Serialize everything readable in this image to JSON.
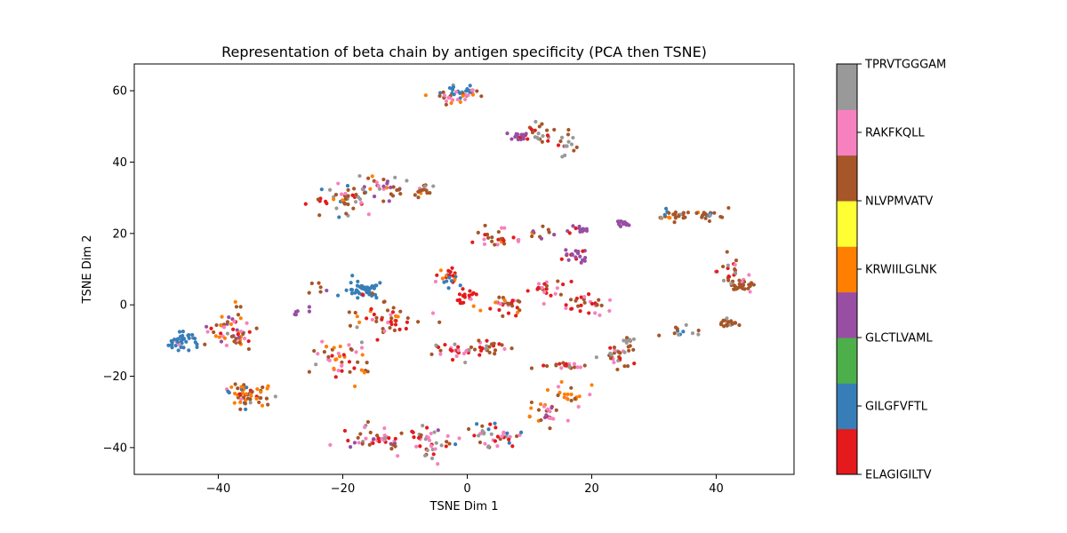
{
  "chart_data": {
    "type": "scatter",
    "title": "Representation of beta chain by antigen specificity (PCA then TSNE)",
    "xlabel": "TSNE Dim 1",
    "ylabel": "TSNE Dim 2",
    "xlim": [
      -53.5,
      52.5
    ],
    "ylim": [
      -47.5,
      67.5
    ],
    "xticks": [
      -40,
      -20,
      0,
      20,
      40
    ],
    "yticks": [
      -40,
      -20,
      0,
      20,
      40,
      60
    ],
    "grid": false,
    "legend": "colorbar-right",
    "colorbar": {
      "categories": [
        "ELAGIGILTV",
        "GILGFVFTL",
        "GLCTLVAML",
        "KRWIILGLNK",
        "NLVPMVATV",
        "RAKFKQLL",
        "TPRVTGGGAM"
      ],
      "colors": {
        "ELAGIGILTV": "#e41a1c",
        "GILGFVFTL": "#377eb8",
        "GLCTLVAML": "#4daf4a",
        "KRWIILGLNK": "#ff7f00",
        "NLVPMVATV": "#ffff33",
        "RAKFKQLL": "#f781bf",
        "TPRVTGGGAM": "#999999"
      },
      "color_order_bottom_to_top": [
        "#e41a1c",
        "#377eb8",
        "#4daf4a",
        "#984ea3",
        "#ff7f00",
        "#ffff33",
        "#a65628",
        "#f781bf",
        "#999999"
      ]
    },
    "clusters": [
      {
        "center": [
          -45.5,
          -10
        ],
        "spread": [
          2.0,
          2.5
        ],
        "n": 40,
        "mix": {
          "#377eb8": 0.9,
          "#a65628": 0.05,
          "#f781bf": 0.05
        }
      },
      {
        "center": [
          -38,
          -7
        ],
        "spread": [
          3.0,
          4.5
        ],
        "n": 55,
        "mix": {
          "#ff7f00": 0.35,
          "#a65628": 0.3,
          "#984ea3": 0.1,
          "#f781bf": 0.1,
          "#e41a1c": 0.1,
          "#999999": 0.05
        }
      },
      {
        "center": [
          -35,
          -25
        ],
        "spread": [
          3.5,
          3.5
        ],
        "n": 55,
        "mix": {
          "#ff7f00": 0.4,
          "#a65628": 0.2,
          "#377eb8": 0.15,
          "#e41a1c": 0.1,
          "#999999": 0.1,
          "#f781bf": 0.05
        }
      },
      {
        "center": [
          -20,
          30
        ],
        "spread": [
          4.0,
          3.5
        ],
        "n": 45,
        "mix": {
          "#a65628": 0.35,
          "#e41a1c": 0.25,
          "#ff7f00": 0.1,
          "#f781bf": 0.1,
          "#377eb8": 0.1,
          "#999999": 0.1
        }
      },
      {
        "center": [
          -13,
          33
        ],
        "spread": [
          3.5,
          3.0
        ],
        "n": 35,
        "mix": {
          "#a65628": 0.35,
          "#984ea3": 0.25,
          "#999999": 0.15,
          "#ff7f00": 0.1,
          "#f781bf": 0.15
        }
      },
      {
        "center": [
          -7,
          32
        ],
        "spread": [
          1.5,
          1.0
        ],
        "n": 12,
        "mix": {
          "#a65628": 0.8,
          "#999999": 0.2
        }
      },
      {
        "center": [
          0,
          60
        ],
        "spread": [
          2.5,
          1.5
        ],
        "n": 30,
        "mix": {
          "#377eb8": 0.5,
          "#a65628": 0.2,
          "#f781bf": 0.15,
          "#999999": 0.15
        }
      },
      {
        "center": [
          -2,
          58
        ],
        "spread": [
          2.5,
          1.5
        ],
        "n": 20,
        "mix": {
          "#ff7f00": 0.4,
          "#a65628": 0.3,
          "#f781bf": 0.3
        }
      },
      {
        "center": [
          8.5,
          47
        ],
        "spread": [
          1.2,
          1.2
        ],
        "n": 18,
        "mix": {
          "#984ea3": 0.8,
          "#e41a1c": 0.2
        }
      },
      {
        "center": [
          12,
          48
        ],
        "spread": [
          2.5,
          2.0
        ],
        "n": 20,
        "mix": {
          "#a65628": 0.5,
          "#e41a1c": 0.3,
          "#999999": 0.2
        }
      },
      {
        "center": [
          16,
          45
        ],
        "spread": [
          1.5,
          2.5
        ],
        "n": 15,
        "mix": {
          "#999999": 0.4,
          "#a65628": 0.4,
          "#e41a1c": 0.2
        }
      },
      {
        "center": [
          -17,
          4
        ],
        "spread": [
          2.5,
          2.0
        ],
        "n": 45,
        "mix": {
          "#377eb8": 0.85,
          "#e41a1c": 0.1,
          "#a65628": 0.05
        }
      },
      {
        "center": [
          -3,
          8
        ],
        "spread": [
          2.0,
          2.0
        ],
        "n": 25,
        "mix": {
          "#377eb8": 0.5,
          "#ff7f00": 0.2,
          "#e41a1c": 0.15,
          "#f781bf": 0.15
        }
      },
      {
        "center": [
          0,
          2
        ],
        "spread": [
          1.5,
          1.5
        ],
        "n": 18,
        "mix": {
          "#e41a1c": 0.9,
          "#f781bf": 0.1
        }
      },
      {
        "center": [
          -14,
          -4
        ],
        "spread": [
          5.0,
          4.0
        ],
        "n": 45,
        "mix": {
          "#a65628": 0.4,
          "#e41a1c": 0.3,
          "#f781bf": 0.15,
          "#ff7f00": 0.1,
          "#999999": 0.05
        }
      },
      {
        "center": [
          -20,
          -15
        ],
        "spread": [
          3.5,
          5.5
        ],
        "n": 45,
        "mix": {
          "#f781bf": 0.3,
          "#ff7f00": 0.25,
          "#a65628": 0.2,
          "#e41a1c": 0.2,
          "#999999": 0.05
        }
      },
      {
        "center": [
          -14,
          -38
        ],
        "spread": [
          5.0,
          3.0
        ],
        "n": 50,
        "mix": {
          "#f781bf": 0.3,
          "#e41a1c": 0.3,
          "#a65628": 0.15,
          "#984ea3": 0.15,
          "#999999": 0.1
        }
      },
      {
        "center": [
          -6,
          -38
        ],
        "spread": [
          3.0,
          4.0
        ],
        "n": 30,
        "mix": {
          "#999999": 0.25,
          "#e41a1c": 0.3,
          "#a65628": 0.2,
          "#f781bf": 0.25
        }
      },
      {
        "center": [
          4,
          -37
        ],
        "spread": [
          4.0,
          3.0
        ],
        "n": 40,
        "mix": {
          "#999999": 0.25,
          "#a65628": 0.2,
          "#377eb8": 0.15,
          "#f781bf": 0.2,
          "#e41a1c": 0.2
        }
      },
      {
        "center": [
          12,
          -30
        ],
        "spread": [
          3.0,
          3.0
        ],
        "n": 25,
        "mix": {
          "#ff7f00": 0.3,
          "#a65628": 0.25,
          "#984ea3": 0.15,
          "#e41a1c": 0.15,
          "#f781bf": 0.15
        }
      },
      {
        "center": [
          -2,
          -13
        ],
        "spread": [
          3.0,
          2.0
        ],
        "n": 25,
        "mix": {
          "#a65628": 0.4,
          "#e41a1c": 0.3,
          "#f781bf": 0.2,
          "#999999": 0.1
        }
      },
      {
        "center": [
          4,
          -12
        ],
        "spread": [
          3.0,
          2.0
        ],
        "n": 25,
        "mix": {
          "#a65628": 0.45,
          "#e41a1c": 0.25,
          "#f781bf": 0.2,
          "#999999": 0.1
        }
      },
      {
        "center": [
          15,
          -17
        ],
        "spread": [
          3.5,
          1.0
        ],
        "n": 20,
        "mix": {
          "#a65628": 0.5,
          "#e41a1c": 0.2,
          "#f781bf": 0.2,
          "#999999": 0.1
        }
      },
      {
        "center": [
          24,
          -14
        ],
        "spread": [
          3.0,
          3.0
        ],
        "n": 30,
        "mix": {
          "#a65628": 0.4,
          "#999999": 0.2,
          "#ff7f00": 0.15,
          "#e41a1c": 0.15,
          "#f781bf": 0.1
        }
      },
      {
        "center": [
          6,
          0
        ],
        "spread": [
          3.0,
          2.0
        ],
        "n": 30,
        "mix": {
          "#a65628": 0.4,
          "#f781bf": 0.25,
          "#e41a1c": 0.25,
          "#ff7f00": 0.1
        }
      },
      {
        "center": [
          13,
          5
        ],
        "spread": [
          3.0,
          2.0
        ],
        "n": 20,
        "mix": {
          "#f781bf": 0.4,
          "#e41a1c": 0.3,
          "#a65628": 0.3
        }
      },
      {
        "center": [
          19,
          0
        ],
        "spread": [
          4.0,
          3.0
        ],
        "n": 30,
        "mix": {
          "#e41a1c": 0.35,
          "#a65628": 0.3,
          "#f781bf": 0.25,
          "#999999": 0.1
        }
      },
      {
        "center": [
          17,
          14
        ],
        "spread": [
          2.0,
          1.5
        ],
        "n": 20,
        "mix": {
          "#984ea3": 0.75,
          "#e41a1c": 0.1,
          "#f781bf": 0.15
        }
      },
      {
        "center": [
          18,
          21
        ],
        "spread": [
          1.5,
          1.0
        ],
        "n": 14,
        "mix": {
          "#984ea3": 0.85,
          "#e41a1c": 0.15
        }
      },
      {
        "center": [
          25,
          23
        ],
        "spread": [
          1.0,
          0.8
        ],
        "n": 12,
        "mix": {
          "#984ea3": 1.0
        }
      },
      {
        "center": [
          5,
          19
        ],
        "spread": [
          4.0,
          2.5
        ],
        "n": 25,
        "mix": {
          "#a65628": 0.4,
          "#e41a1c": 0.25,
          "#f781bf": 0.25,
          "#ff7f00": 0.1
        }
      },
      {
        "center": [
          12,
          21
        ],
        "spread": [
          2.0,
          2.0
        ],
        "n": 10,
        "mix": {
          "#a65628": 0.5,
          "#984ea3": 0.2,
          "#ff7f00": 0.3
        }
      },
      {
        "center": [
          33,
          25
        ],
        "spread": [
          3.0,
          1.5
        ],
        "n": 25,
        "mix": {
          "#a65628": 0.5,
          "#377eb8": 0.2,
          "#ff7f00": 0.15,
          "#999999": 0.15
        }
      },
      {
        "center": [
          39,
          25
        ],
        "spread": [
          2.0,
          1.5
        ],
        "n": 20,
        "mix": {
          "#a65628": 0.6,
          "#377eb8": 0.25,
          "#999999": 0.15
        }
      },
      {
        "center": [
          44.5,
          5.5
        ],
        "spread": [
          1.5,
          1.5
        ],
        "n": 30,
        "mix": {
          "#a65628": 0.85,
          "#f781bf": 0.15
        }
      },
      {
        "center": [
          42,
          10
        ],
        "spread": [
          1.5,
          3.5
        ],
        "n": 20,
        "mix": {
          "#a65628": 0.4,
          "#999999": 0.2,
          "#f781bf": 0.2,
          "#e41a1c": 0.2
        }
      },
      {
        "center": [
          42,
          -5
        ],
        "spread": [
          1.2,
          1.0
        ],
        "n": 18,
        "mix": {
          "#a65628": 0.9,
          "#999999": 0.1
        }
      },
      {
        "center": [
          35,
          -7
        ],
        "spread": [
          3.0,
          1.5
        ],
        "n": 12,
        "mix": {
          "#a65628": 0.6,
          "#999999": 0.3,
          "#377eb8": 0.1
        }
      },
      {
        "center": [
          26,
          -10
        ],
        "spread": [
          1.0,
          1.0
        ],
        "n": 10,
        "mix": {
          "#999999": 0.8,
          "#a65628": 0.2
        }
      },
      {
        "center": [
          -27,
          -2
        ],
        "spread": [
          1.5,
          1.0
        ],
        "n": 6,
        "mix": {
          "#984ea3": 1.0
        }
      },
      {
        "center": [
          -24,
          4
        ],
        "spread": [
          1.5,
          1.5
        ],
        "n": 6,
        "mix": {
          "#984ea3": 0.5,
          "#a65628": 0.5
        }
      },
      {
        "center": [
          16,
          -25
        ],
        "spread": [
          4.0,
          3.0
        ],
        "n": 20,
        "mix": {
          "#ff7f00": 0.4,
          "#a65628": 0.3,
          "#f781bf": 0.3
        }
      }
    ]
  }
}
